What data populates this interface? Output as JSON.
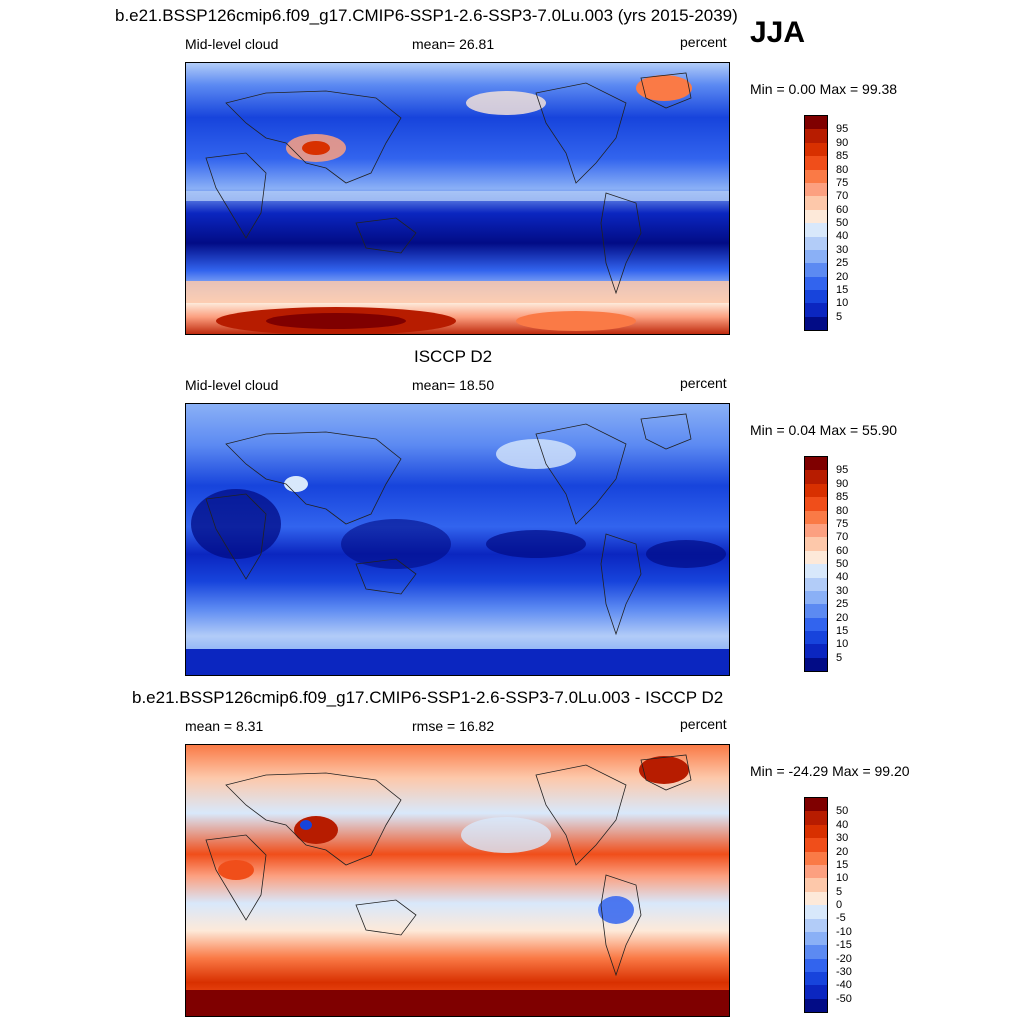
{
  "season": "JJA",
  "panels": [
    {
      "title": "b.e21.BSSP126cmip6.f09_g17.CMIP6-SSP1-2.6-SSP3-7.0Lu.003 (yrs 2015-2039)",
      "left_label": "Mid-level cloud",
      "center_label": "mean=  26.81",
      "right_label": "percent",
      "minmax": "Min =   0.00 Max =  99.38",
      "colorbar_labels": [
        "95",
        "90",
        "85",
        "80",
        "75",
        "70",
        "60",
        "50",
        "40",
        "30",
        "25",
        "20",
        "15",
        "10",
        "5"
      ]
    },
    {
      "title": "ISCCP D2",
      "left_label": "Mid-level cloud",
      "center_label": "mean=  18.50",
      "right_label": "percent",
      "minmax": "Min =   0.04 Max =  55.90",
      "colorbar_labels": [
        "95",
        "90",
        "85",
        "80",
        "75",
        "70",
        "60",
        "50",
        "40",
        "30",
        "25",
        "20",
        "15",
        "10",
        "5"
      ]
    },
    {
      "title": "b.e21.BSSP126cmip6.f09_g17.CMIP6-SSP1-2.6-SSP3-7.0Lu.003 - ISCCP D2",
      "left_label": "mean =   8.31",
      "center_label": "rmse =  16.82",
      "right_label": "percent",
      "minmax": "Min = -24.29 Max =  99.20",
      "colorbar_labels": [
        "50",
        "40",
        "30",
        "20",
        "15",
        "10",
        "5",
        "0",
        "-5",
        "-10",
        "-15",
        "-20",
        "-30",
        "-40",
        "-50"
      ]
    }
  ],
  "colorbar_colors": [
    "#7f0000",
    "#b71c00",
    "#d83000",
    "#f04e1a",
    "#fa7a46",
    "#fca080",
    "#fdc8aa",
    "#fde9d9",
    "#d8e8fb",
    "#b2ccf8",
    "#8ab0f6",
    "#5c8af2",
    "#3264ee",
    "#1744dc",
    "#0b26c0",
    "#020c86"
  ]
}
